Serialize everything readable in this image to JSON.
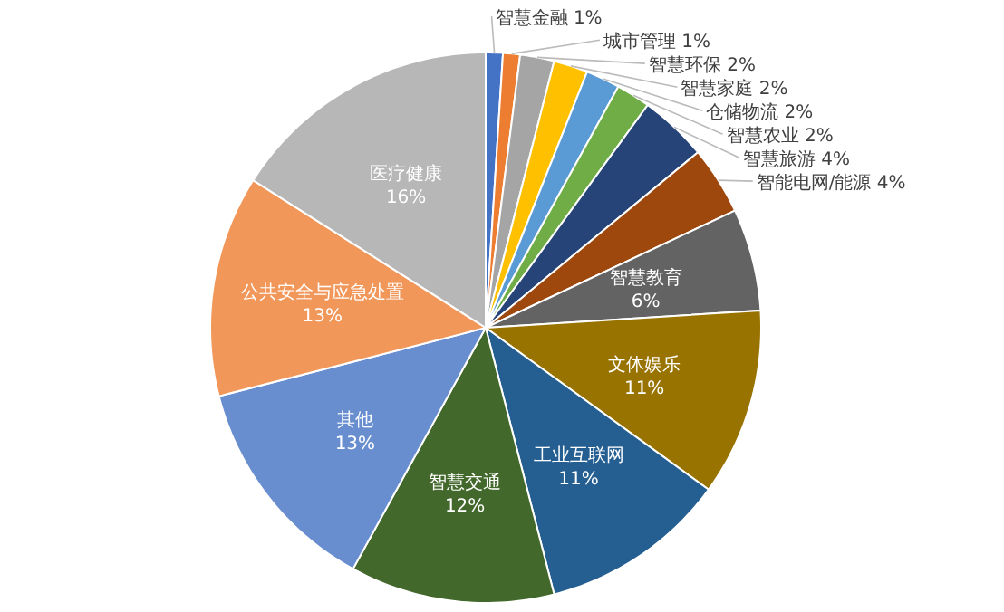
{
  "chart_data": {
    "type": "pie",
    "data_labels": true,
    "categories": [
      "智慧金融",
      "城市管理",
      "智慧环保",
      "智慧家庭",
      "仓储物流",
      "智慧农业",
      "智慧旅游",
      "智能电网/能源",
      "智慧教育",
      "文体娱乐",
      "工业互联网",
      "智慧交通",
      "其他",
      "公共安全与应急处置",
      "医疗健康"
    ],
    "values": [
      1,
      1,
      2,
      2,
      2,
      2,
      4,
      4,
      6,
      11,
      11,
      12,
      13,
      13,
      16
    ],
    "value_labels": [
      "1%",
      "1%",
      "2%",
      "2%",
      "2%",
      "2%",
      "4%",
      "4%",
      "6%",
      "11%",
      "11%",
      "12%",
      "13%",
      "13%",
      "16%"
    ],
    "colors": [
      "#4472c4",
      "#ed7d31",
      "#a5a5a5",
      "#ffc000",
      "#5b9bd5",
      "#70ad47",
      "#264478",
      "#9e480e",
      "#636363",
      "#997300",
      "#255e91",
      "#43682b",
      "#698ed0",
      "#f1975a",
      "#b7b7b7"
    ]
  }
}
